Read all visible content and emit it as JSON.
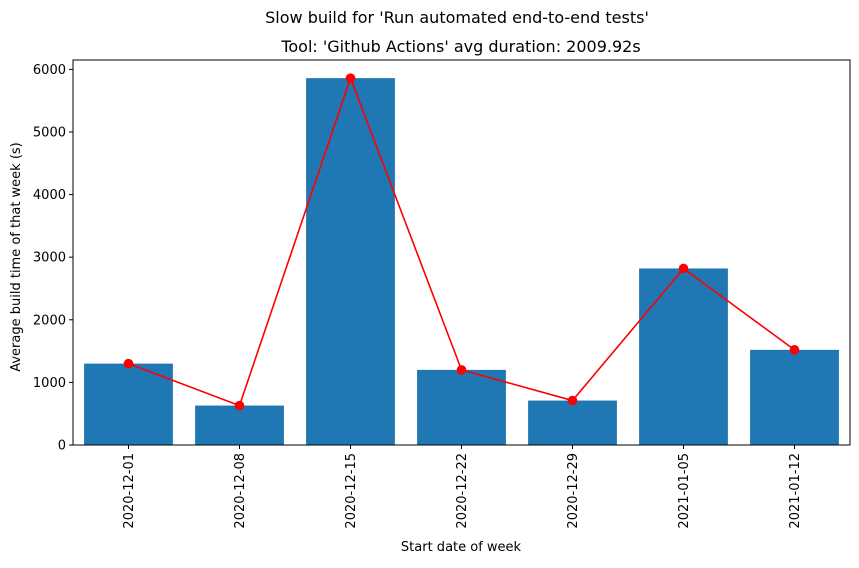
{
  "chart_data": {
    "type": "bar",
    "suptitle": "Slow build for 'Run automated end-to-end tests'",
    "title": "Tool: 'Github Actions' avg duration: 2009.92s",
    "xlabel": "Start date of week",
    "ylabel": "Average build time of that week (s)",
    "categories": [
      "2020-12-01",
      "2020-12-08",
      "2020-12-15",
      "2020-12-22",
      "2020-12-29",
      "2021-01-05",
      "2021-01-12"
    ],
    "values": [
      1300,
      630,
      5860,
      1200,
      710,
      2820,
      1520
    ],
    "overlay_line": {
      "type": "line",
      "color": "#ff0000",
      "marker": "circle",
      "values": [
        1300,
        630,
        5860,
        1200,
        710,
        2820,
        1520
      ]
    },
    "bar_color": "#1f77b4",
    "ylim": [
      0,
      6150
    ],
    "yticks": [
      0,
      1000,
      2000,
      3000,
      4000,
      5000,
      6000
    ],
    "grid": false,
    "legend": "none"
  }
}
